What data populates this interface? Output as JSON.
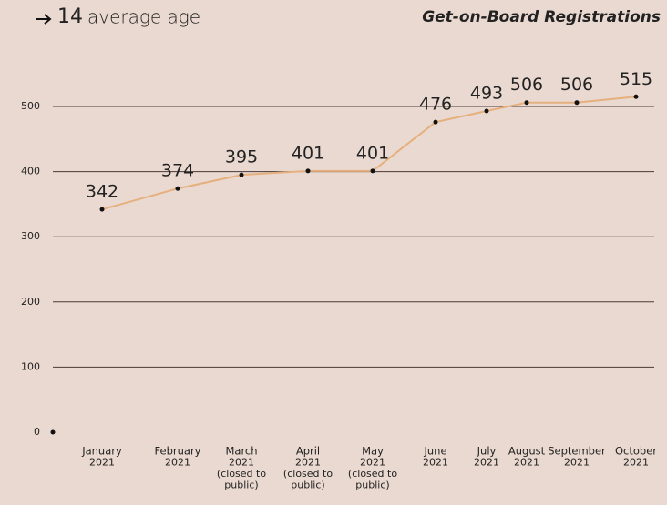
{
  "header": {
    "number": "14",
    "text": "average age"
  },
  "chart_data": {
    "type": "line",
    "title": "Get-on-Board Registrations",
    "categories": [
      [
        "January",
        "2021"
      ],
      [
        "February",
        "2021"
      ],
      [
        "March",
        "2021",
        "(closed to",
        "public)"
      ],
      [
        "April",
        "2021",
        "(closed to",
        "public)"
      ],
      [
        "May",
        "2021",
        "(closed to",
        "public)"
      ],
      [
        "June",
        "2021"
      ],
      [
        "July",
        "2021"
      ],
      [
        "August",
        "2021"
      ],
      [
        "September",
        "2021"
      ],
      [
        "October",
        "2021"
      ]
    ],
    "series": [
      {
        "name": "Registrations",
        "color": "#e5b07e",
        "values": [
          342,
          374,
          395,
          401,
          401,
          476,
          493,
          506,
          506,
          515
        ]
      }
    ],
    "ylim": [
      0,
      500
    ],
    "yticks": [
      0,
      100,
      200,
      300,
      400,
      500
    ],
    "grid": true
  }
}
